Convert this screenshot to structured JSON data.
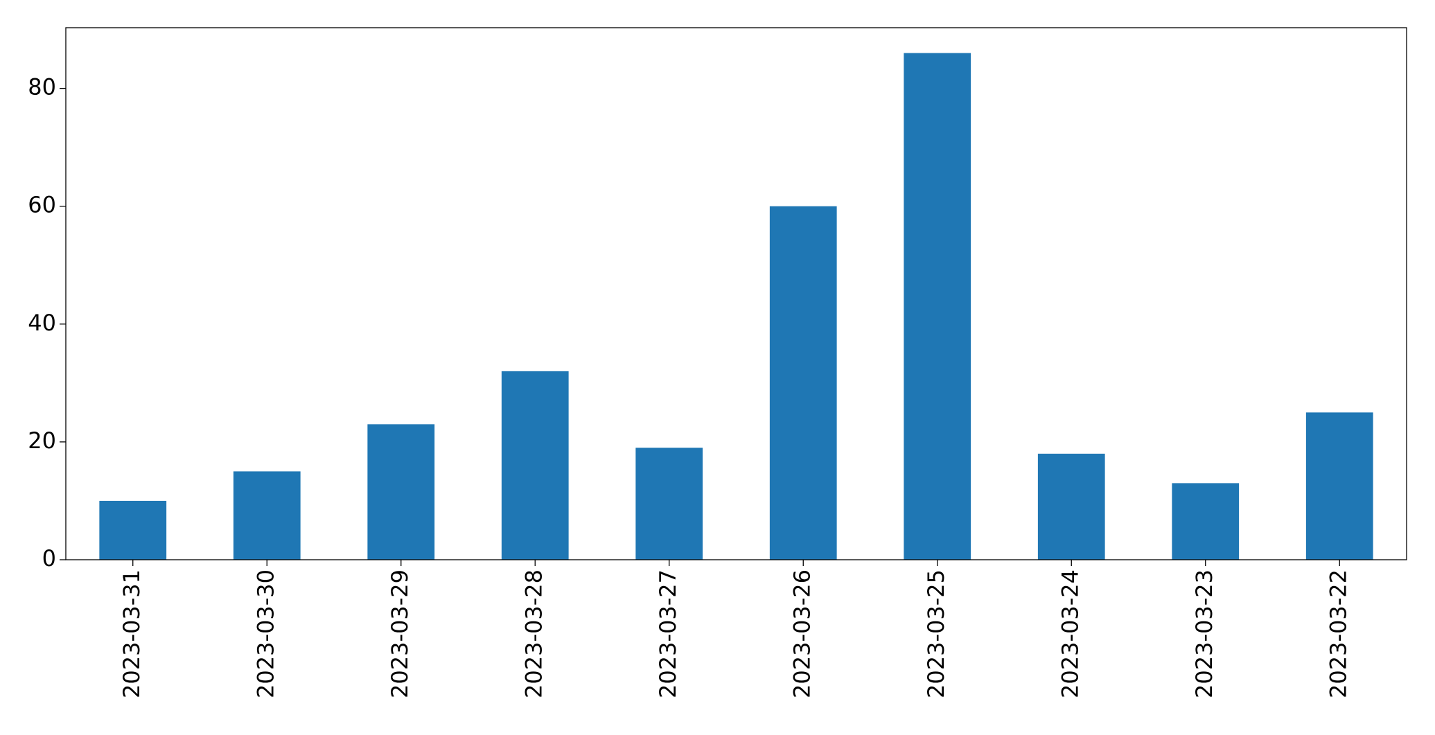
{
  "chart_data": {
    "type": "bar",
    "categories": [
      "2023-03-31",
      "2023-03-30",
      "2023-03-29",
      "2023-03-28",
      "2023-03-27",
      "2023-03-26",
      "2023-03-25",
      "2023-03-24",
      "2023-03-23",
      "2023-03-22"
    ],
    "values": [
      10,
      15,
      23,
      32,
      19,
      60,
      86,
      18,
      13,
      25
    ],
    "color": "#1f77b4",
    "ylim": [
      0,
      90.3
    ],
    "yticks": [
      0,
      20,
      40,
      60,
      80
    ],
    "grid": false
  }
}
